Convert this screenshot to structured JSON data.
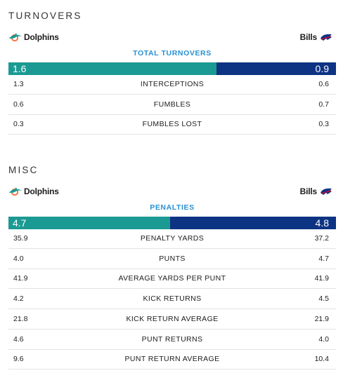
{
  "turnovers": {
    "title": "TURNOVERS",
    "home_team": "Dolphins",
    "away_team": "Bills",
    "main_stat": {
      "label": "TOTAL TURNOVERS",
      "home": "1.6",
      "away": "0.9",
      "home_share": 0.64
    },
    "rows": [
      {
        "home": "1.3",
        "label": "INTERCEPTIONS",
        "away": "0.6"
      },
      {
        "home": "0.6",
        "label": "FUMBLES",
        "away": "0.7"
      },
      {
        "home": "0.3",
        "label": "FUMBLES LOST",
        "away": "0.3"
      }
    ]
  },
  "misc": {
    "title": "MISC",
    "home_team": "Dolphins",
    "away_team": "Bills",
    "main_stat": {
      "label": "PENALTIES",
      "home": "4.7",
      "away": "4.8",
      "home_share": 0.495
    },
    "rows": [
      {
        "home": "35.9",
        "label": "PENALTY YARDS",
        "away": "37.2"
      },
      {
        "home": "4.0",
        "label": "PUNTS",
        "away": "4.7"
      },
      {
        "home": "41.9",
        "label": "AVERAGE YARDS PER PUNT",
        "away": "41.9"
      },
      {
        "home": "4.2",
        "label": "KICK RETURNS",
        "away": "4.5"
      },
      {
        "home": "21.8",
        "label": "KICK RETURN AVERAGE",
        "away": "21.9"
      },
      {
        "home": "4.6",
        "label": "PUNT RETURNS",
        "away": "4.0"
      },
      {
        "home": "9.6",
        "label": "PUNT RETURN AVERAGE",
        "away": "10.4"
      }
    ]
  },
  "colors": {
    "home": "#1a9a92",
    "away": "#0d3383",
    "accent": "#2690d2"
  },
  "icons": {
    "home_logo": "dolphins-logo-icon",
    "away_logo": "bills-logo-icon"
  }
}
